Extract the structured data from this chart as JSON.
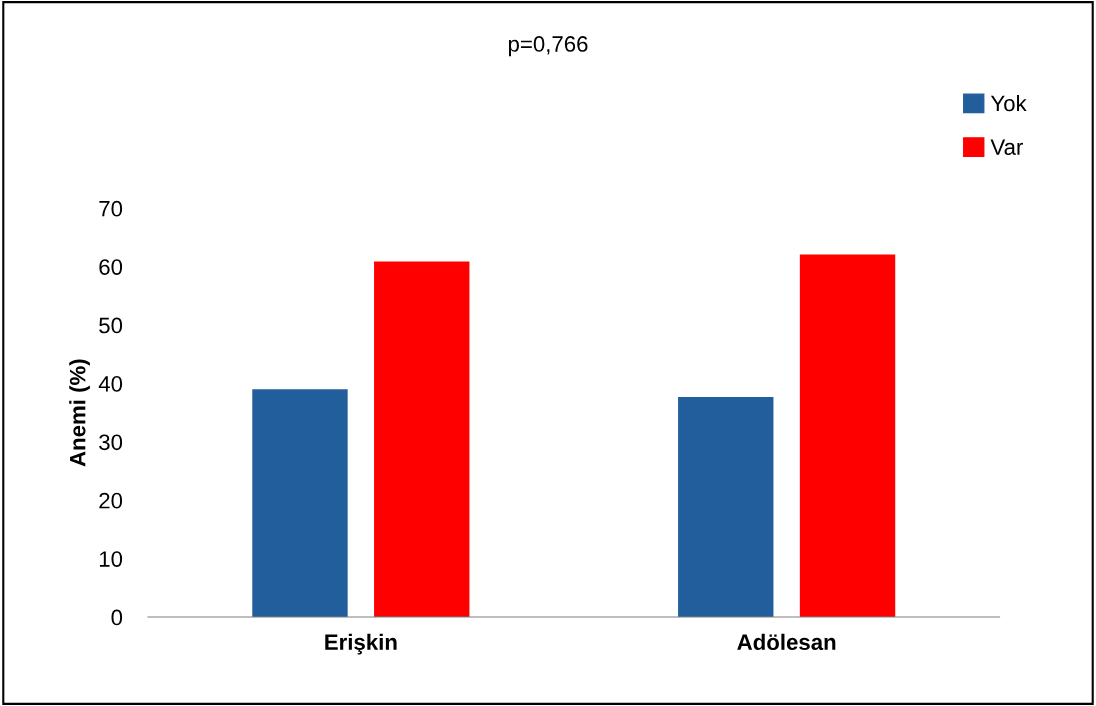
{
  "chart_data": {
    "type": "bar",
    "title": "p=0,766",
    "ylabel": "Anemi (%)",
    "categories": [
      "Erişkin",
      "Adölesan"
    ],
    "series": [
      {
        "name": "Yok",
        "color": "#235e9c",
        "values": [
          39.0,
          37.7
        ]
      },
      {
        "name": "Var",
        "color": "#ff0000",
        "values": [
          60.9,
          62.1
        ]
      }
    ],
    "ylim": [
      0,
      70
    ],
    "yticks": [
      0,
      10,
      20,
      30,
      40,
      50,
      60,
      70
    ],
    "grid": false,
    "legend": "top right"
  }
}
